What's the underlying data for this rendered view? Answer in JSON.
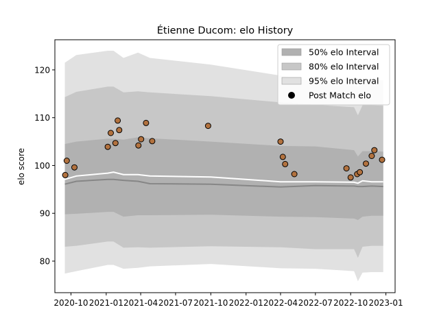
{
  "chart_data": {
    "type": "scatter",
    "title": "Étienne Ducom: elo History",
    "xlabel": "",
    "ylabel": "elo score",
    "xlim": [
      "2020-08-20",
      "2023-01-25"
    ],
    "ylim": [
      73.4,
      126.3
    ],
    "x_ticks": [
      {
        "date": "2020-10-01",
        "label": "2020-10"
      },
      {
        "date": "2021-01-01",
        "label": "2021-01"
      },
      {
        "date": "2021-04-01",
        "label": "2021-04"
      },
      {
        "date": "2021-07-01",
        "label": "2021-07"
      },
      {
        "date": "2021-10-01",
        "label": "2021-10"
      },
      {
        "date": "2022-01-01",
        "label": "2022-01"
      },
      {
        "date": "2022-04-01",
        "label": "2022-04"
      },
      {
        "date": "2022-07-01",
        "label": "2022-07"
      },
      {
        "date": "2022-10-01",
        "label": "2022-10"
      },
      {
        "date": "2023-01-01",
        "label": "2023-01"
      }
    ],
    "y_ticks": [
      80,
      90,
      100,
      110,
      120
    ],
    "grid": false,
    "legend_position": "top-right",
    "legend": [
      {
        "label": "50% elo Interval",
        "kind": "band",
        "color": "#b1b1b1"
      },
      {
        "label": "80% elo Interval",
        "kind": "band",
        "color": "#c7c7c7"
      },
      {
        "label": "95% elo Interval",
        "kind": "band",
        "color": "#e1e1e1"
      },
      {
        "label": "Post Match elo",
        "kind": "marker",
        "color": "#000000"
      }
    ],
    "bands": {
      "x": [
        "2020-09-15",
        "2020-10-15",
        "2021-01-05",
        "2021-01-20",
        "2021-02-15",
        "2021-03-25",
        "2021-04-25",
        "2021-10-01",
        "2022-04-01",
        "2022-07-01",
        "2022-10-10",
        "2022-10-20",
        "2022-11-01",
        "2022-11-25",
        "2022-12-25"
      ],
      "band95_upper": [
        121.5,
        123.1,
        124.0,
        124.0,
        122.5,
        123.6,
        122.5,
        121.1,
        118.8,
        117.5,
        116.8,
        116.5,
        117.6,
        117.9,
        117.9
      ],
      "band95_lower": [
        77.4,
        77.9,
        79.2,
        79.2,
        78.4,
        78.6,
        78.9,
        79.4,
        78.5,
        78.4,
        77.9,
        75.8,
        77.6,
        77.7,
        77.7
      ],
      "band80_upper": [
        114.3,
        115.4,
        116.5,
        116.5,
        115.3,
        115.5,
        115.3,
        114.5,
        113.2,
        112.7,
        112.2,
        110.5,
        112.6,
        112.6,
        112.5
      ],
      "band80_lower": [
        83.0,
        83.2,
        84.1,
        84.1,
        82.8,
        82.9,
        82.8,
        83.1,
        82.9,
        82.5,
        82.5,
        80.7,
        83.0,
        83.2,
        83.2
      ],
      "band50_upper": [
        104.5,
        105.0,
        105.6,
        105.6,
        105.4,
        105.9,
        105.7,
        105.0,
        104.1,
        104.0,
        103.2,
        101.9,
        103.0,
        103.0,
        102.9
      ],
      "band50_lower": [
        89.8,
        89.9,
        90.3,
        90.3,
        89.3,
        89.6,
        89.6,
        89.7,
        89.3,
        89.2,
        88.9,
        88.6,
        89.3,
        89.5,
        89.5
      ],
      "median_line": [
        96.1,
        96.7,
        97.1,
        97.1,
        96.9,
        96.7,
        96.2,
        96.1,
        95.5,
        95.8,
        95.7,
        95.6,
        95.6,
        95.7,
        95.6
      ],
      "mean_line": [
        97.1,
        97.8,
        98.4,
        98.6,
        98.1,
        98.1,
        97.8,
        97.6,
        96.6,
        96.6,
        96.5,
        96.3,
        96.8,
        96.6,
        96.6
      ]
    },
    "points": [
      {
        "date": "2020-09-16",
        "elo": 98.0
      },
      {
        "date": "2020-09-20",
        "elo": 101.0
      },
      {
        "date": "2020-10-10",
        "elo": 99.6
      },
      {
        "date": "2021-01-05",
        "elo": 103.9
      },
      {
        "date": "2021-01-13",
        "elo": 106.8
      },
      {
        "date": "2021-01-25",
        "elo": 104.7
      },
      {
        "date": "2021-01-31",
        "elo": 109.4
      },
      {
        "date": "2021-02-04",
        "elo": 107.4
      },
      {
        "date": "2021-03-26",
        "elo": 104.2
      },
      {
        "date": "2021-04-02",
        "elo": 105.5
      },
      {
        "date": "2021-04-15",
        "elo": 108.9
      },
      {
        "date": "2021-05-01",
        "elo": 105.1
      },
      {
        "date": "2021-09-24",
        "elo": 108.3
      },
      {
        "date": "2022-04-01",
        "elo": 105.0
      },
      {
        "date": "2022-04-07",
        "elo": 101.8
      },
      {
        "date": "2022-04-13",
        "elo": 100.3
      },
      {
        "date": "2022-05-07",
        "elo": 98.2
      },
      {
        "date": "2022-09-20",
        "elo": 99.4
      },
      {
        "date": "2022-10-01",
        "elo": 97.5
      },
      {
        "date": "2022-10-18",
        "elo": 98.2
      },
      {
        "date": "2022-10-25",
        "elo": 98.6
      },
      {
        "date": "2022-11-10",
        "elo": 100.4
      },
      {
        "date": "2022-11-25",
        "elo": 102.0
      },
      {
        "date": "2022-12-02",
        "elo": 103.2
      },
      {
        "date": "2022-12-22",
        "elo": 101.2
      }
    ],
    "colors": {
      "band95": "#e1e1e1",
      "band80": "#c7c7c7",
      "band50": "#b1b1b1",
      "median_line": "#868686",
      "mean_line": "#ffffff",
      "point_fill": "#b2723f",
      "point_edge": "#000000"
    }
  }
}
